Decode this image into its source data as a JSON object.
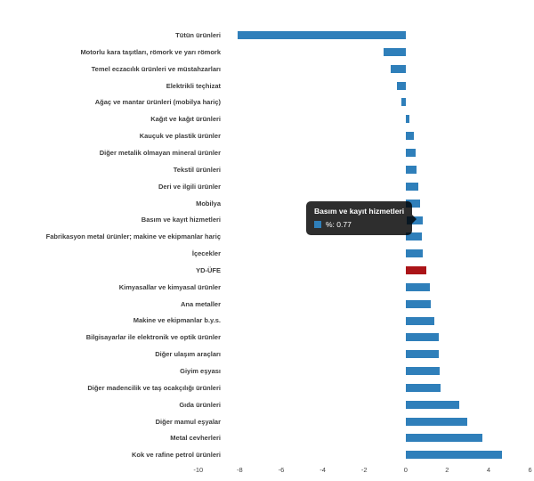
{
  "chart_data": {
    "type": "bar",
    "orientation": "horizontal",
    "title": "",
    "xlabel": "",
    "ylabel": "",
    "unit": "%",
    "grid": false,
    "legend": false,
    "bar_color": "#2f7fba",
    "accent_bar_color": "#ab1418",
    "accent_category": "YD-ÜFE",
    "highlighted_category": "Basım ve kayıt hizmetleri",
    "x_ticks": [
      -10,
      -8,
      -6,
      -4,
      -2,
      0,
      2,
      4,
      6
    ],
    "xlim": [
      -10.5,
      6.3
    ],
    "categories": [
      "Tütün ürünleri",
      "Motorlu kara taşıtları, römork ve yarı römork",
      "Temel eczacılık ürünleri ve müstahzarları",
      "Elektrikli teçhizat",
      "Ağaç ve mantar ürünleri (mobilya hariç)",
      "Kağıt ve kağıt ürünleri",
      "Kauçuk ve plastik ürünler",
      "Diğer metalik olmayan mineral ürünler",
      "Tekstil ürünleri",
      "Deri ve ilgili ürünler",
      "Mobilya",
      "Basım ve kayıt hizmetleri",
      "Fabrikasyon metal ürünler; makine ve ekipmanlar hariç",
      "İçecekler",
      "YD-ÜFE",
      "Kimyasallar ve kimyasal ürünler",
      "Ana metaller",
      "Makine ve ekipmanlar b.y.s.",
      "Bilgisayarlar ile elektronik ve optik ürünler",
      "Diğer ulaşım araçları",
      "Giyim eşyası",
      "Diğer madencilik ve taş ocakçılığı ürünleri",
      "Gıda ürünleri",
      "Diğer mamul eşyalar",
      "Metal cevherleri",
      "Kok ve rafine petrol ürünleri"
    ],
    "values": [
      -8.12,
      -1.06,
      -0.72,
      -0.42,
      -0.2,
      0.18,
      0.39,
      0.48,
      0.54,
      0.61,
      0.71,
      0.77,
      0.79,
      0.82,
      1.01,
      1.15,
      1.22,
      1.37,
      1.58,
      1.58,
      1.65,
      1.68,
      2.57,
      2.97,
      3.69,
      4.64
    ],
    "tooltip": {
      "title": "Basım ve kayıt hizmetleri",
      "label": "%: 0.77",
      "marker_color": "#2f7fba"
    }
  }
}
